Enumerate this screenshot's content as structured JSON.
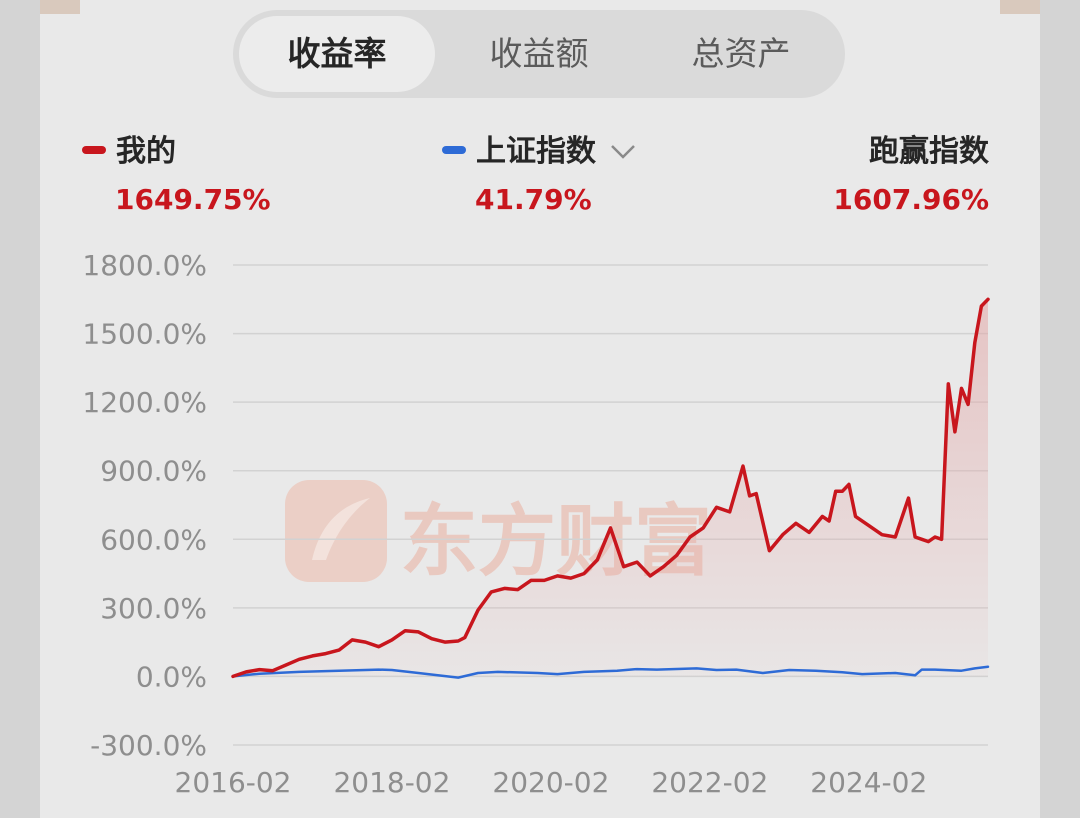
{
  "tabs": [
    {
      "label": "收益率",
      "active": true
    },
    {
      "label": "收益额",
      "active": false
    },
    {
      "label": "总资产",
      "active": false
    }
  ],
  "legend": {
    "mine": {
      "name": "我的",
      "value": "1649.75%",
      "color": "#c8161d"
    },
    "index": {
      "name": "上证指数",
      "value": "41.79%",
      "color": "#2e6bd6"
    },
    "outperform": {
      "name": "跑赢指数",
      "value": "1607.96%"
    }
  },
  "watermark": {
    "text": "东方财富"
  },
  "chart_data": {
    "type": "line",
    "ylim": [
      -300,
      1800
    ],
    "yticks": [
      1800,
      1500,
      1200,
      900,
      600,
      300,
      0,
      -300
    ],
    "ytick_labels": [
      "1800.0%",
      "1500.0%",
      "1200.0%",
      "900.0%",
      "600.0%",
      "300.0%",
      "0.0%",
      "-300.0%"
    ],
    "xlim": [
      "2016-02",
      "2025-08"
    ],
    "xtick_labels": [
      "2016-02",
      "2018-02",
      "2020-02",
      "2022-02",
      "2024-02"
    ],
    "xtick_values": [
      "2016-02",
      "2018-02",
      "2020-02",
      "2022-02",
      "2024-02"
    ],
    "grid": true,
    "series": [
      {
        "name": "我的",
        "color": "#c8161d",
        "area_fill": true,
        "points": [
          [
            "2016-02",
            0
          ],
          [
            "2016-04",
            20
          ],
          [
            "2016-06",
            30
          ],
          [
            "2016-08",
            25
          ],
          [
            "2016-10",
            50
          ],
          [
            "2016-12",
            75
          ],
          [
            "2017-02",
            90
          ],
          [
            "2017-04",
            100
          ],
          [
            "2017-06",
            115
          ],
          [
            "2017-08",
            160
          ],
          [
            "2017-10",
            150
          ],
          [
            "2017-12",
            130
          ],
          [
            "2018-02",
            160
          ],
          [
            "2018-04",
            200
          ],
          [
            "2018-06",
            195
          ],
          [
            "2018-08",
            165
          ],
          [
            "2018-10",
            150
          ],
          [
            "2018-12",
            155
          ],
          [
            "2019-01",
            170
          ],
          [
            "2019-03",
            290
          ],
          [
            "2019-05",
            370
          ],
          [
            "2019-07",
            385
          ],
          [
            "2019-09",
            380
          ],
          [
            "2019-11",
            420
          ],
          [
            "2020-01",
            420
          ],
          [
            "2020-03",
            440
          ],
          [
            "2020-05",
            430
          ],
          [
            "2020-07",
            450
          ],
          [
            "2020-09",
            510
          ],
          [
            "2020-11",
            650
          ],
          [
            "2021-01",
            480
          ],
          [
            "2021-03",
            500
          ],
          [
            "2021-05",
            440
          ],
          [
            "2021-07",
            480
          ],
          [
            "2021-09",
            530
          ],
          [
            "2021-11",
            610
          ],
          [
            "2022-01",
            650
          ],
          [
            "2022-03",
            740
          ],
          [
            "2022-05",
            720
          ],
          [
            "2022-07",
            920
          ],
          [
            "2022-08",
            790
          ],
          [
            "2022-09",
            800
          ],
          [
            "2022-11",
            550
          ],
          [
            "2023-01",
            620
          ],
          [
            "2023-03",
            670
          ],
          [
            "2023-05",
            630
          ],
          [
            "2023-07",
            700
          ],
          [
            "2023-08",
            680
          ],
          [
            "2023-09",
            810
          ],
          [
            "2023-10",
            810
          ],
          [
            "2023-11",
            840
          ],
          [
            "2023-12",
            700
          ],
          [
            "2024-02",
            660
          ],
          [
            "2024-04",
            620
          ],
          [
            "2024-06",
            610
          ],
          [
            "2024-08",
            780
          ],
          [
            "2024-09",
            610
          ],
          [
            "2024-10",
            600
          ],
          [
            "2024-11",
            590
          ],
          [
            "2024-12",
            610
          ],
          [
            "2025-01",
            600
          ],
          [
            "2025-02",
            1280
          ],
          [
            "2025-03",
            1070
          ],
          [
            "2025-04",
            1260
          ],
          [
            "2025-05",
            1190
          ],
          [
            "2025-06",
            1460
          ],
          [
            "2025-07",
            1620
          ],
          [
            "2025-08",
            1650
          ]
        ]
      },
      {
        "name": "上证指数",
        "color": "#2e6bd6",
        "area_fill": false,
        "points": [
          [
            "2016-02",
            0
          ],
          [
            "2016-06",
            12
          ],
          [
            "2016-12",
            20
          ],
          [
            "2017-06",
            25
          ],
          [
            "2017-12",
            30
          ],
          [
            "2018-02",
            28
          ],
          [
            "2018-06",
            15
          ],
          [
            "2018-12",
            -5
          ],
          [
            "2019-03",
            15
          ],
          [
            "2019-06",
            20
          ],
          [
            "2019-12",
            15
          ],
          [
            "2020-03",
            10
          ],
          [
            "2020-07",
            20
          ],
          [
            "2020-12",
            25
          ],
          [
            "2021-03",
            32
          ],
          [
            "2021-06",
            30
          ],
          [
            "2021-12",
            35
          ],
          [
            "2022-03",
            28
          ],
          [
            "2022-06",
            30
          ],
          [
            "2022-10",
            15
          ],
          [
            "2023-02",
            28
          ],
          [
            "2023-06",
            25
          ],
          [
            "2023-10",
            18
          ],
          [
            "2024-01",
            10
          ],
          [
            "2024-06",
            15
          ],
          [
            "2024-09",
            5
          ],
          [
            "2024-10",
            30
          ],
          [
            "2024-12",
            30
          ],
          [
            "2025-04",
            25
          ],
          [
            "2025-06",
            35
          ],
          [
            "2025-08",
            42
          ]
        ]
      }
    ]
  }
}
